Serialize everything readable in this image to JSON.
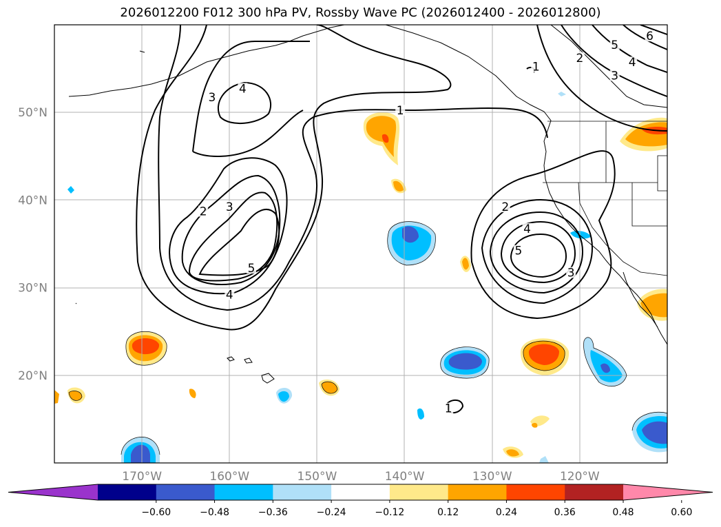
{
  "title": "2026012200 F012 300 hPa PV, Rossby Wave PC (2026012400 - 2026012800)",
  "map": {
    "lon_range": [
      -180,
      -110
    ],
    "lat_range": [
      10,
      60
    ],
    "lat_ticks": [
      {
        "value": 50,
        "label": "50°N"
      },
      {
        "value": 40,
        "label": "40°N"
      },
      {
        "value": 30,
        "label": "30°N"
      },
      {
        "value": 20,
        "label": "20°N"
      }
    ],
    "lon_ticks": [
      {
        "value": -170,
        "label": "170°W"
      },
      {
        "value": -160,
        "label": "160°W"
      },
      {
        "value": -150,
        "label": "150°W"
      },
      {
        "value": -140,
        "label": "140°W"
      },
      {
        "value": -130,
        "label": "130°W"
      },
      {
        "value": -120,
        "label": "120°W"
      }
    ],
    "grid": true,
    "contour_labels": [
      {
        "text": "1",
        "lon": -140.5,
        "lat": 50.0
      },
      {
        "text": "1",
        "lon": -125.0,
        "lat": 55.0
      },
      {
        "text": "1",
        "lon": -135.0,
        "lat": 16.0
      },
      {
        "text": "2",
        "lon": -163.0,
        "lat": 38.5
      },
      {
        "text": "2",
        "lon": -128.5,
        "lat": 39.0
      },
      {
        "text": "2",
        "lon": -120.0,
        "lat": 56.0
      },
      {
        "text": "3",
        "lon": -162.0,
        "lat": 51.5
      },
      {
        "text": "3",
        "lon": -160.0,
        "lat": 39.0
      },
      {
        "text": "3",
        "lon": -121.0,
        "lat": 31.5
      },
      {
        "text": "3",
        "lon": -116.0,
        "lat": 54.0
      },
      {
        "text": "4",
        "lon": -158.5,
        "lat": 52.5
      },
      {
        "text": "4",
        "lon": -160.0,
        "lat": 29.0
      },
      {
        "text": "4",
        "lon": -126.0,
        "lat": 36.5
      },
      {
        "text": "4",
        "lon": -114.0,
        "lat": 55.5
      },
      {
        "text": "5",
        "lon": -157.5,
        "lat": 32.0
      },
      {
        "text": "5",
        "lon": -127.0,
        "lat": 34.0
      },
      {
        "text": "5",
        "lon": -116.0,
        "lat": 57.5
      },
      {
        "text": "6",
        "lon": -112.0,
        "lat": 58.5
      }
    ]
  },
  "colorbar": {
    "colors": [
      "#9a33cc",
      "#00008b",
      "#3a5acd",
      "#00bfff",
      "#b0e0f8",
      "#ffffff",
      "#ffe98a",
      "#ffa500",
      "#ff4500",
      "#b22222",
      "#ff88aa"
    ],
    "ticks": [
      "−0.60",
      "−0.48",
      "−0.36",
      "−0.24",
      "−0.12",
      "0.12",
      "0.24",
      "0.36",
      "0.48",
      "0.60"
    ]
  }
}
